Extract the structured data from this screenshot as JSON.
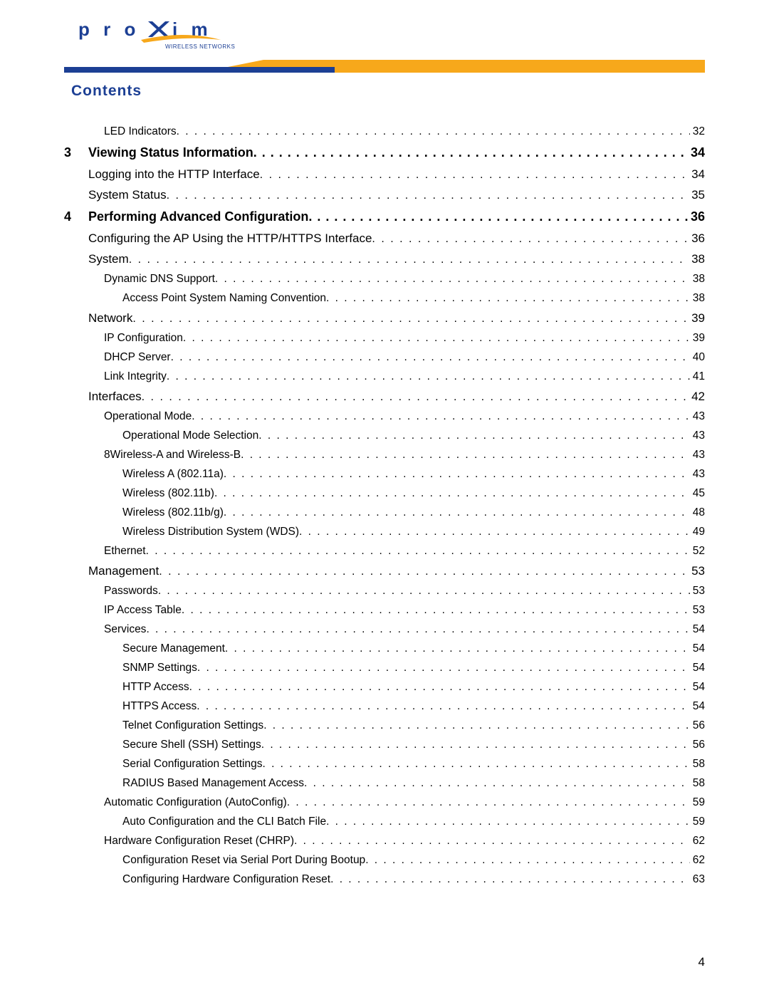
{
  "brand": {
    "name": "proxim",
    "tagline": "WIRELESS NETWORKS",
    "text_color": "#1c3f94",
    "accent_color": "#f7a81b"
  },
  "heading": "Contents",
  "page_number": "4",
  "toc": [
    {
      "level": "2",
      "label": "LED Indicators",
      "page": "32"
    },
    {
      "level": "chapter",
      "number": "3",
      "label": "Viewing Status Information",
      "page": "34"
    },
    {
      "level": "1",
      "label": "Logging into the HTTP Interface",
      "page": "34"
    },
    {
      "level": "1",
      "label": "System Status",
      "page": "35"
    },
    {
      "level": "chapter",
      "number": "4",
      "label": "Performing Advanced Configuration",
      "page": "36"
    },
    {
      "level": "1",
      "label": "Configuring the AP Using the HTTP/HTTPS Interface",
      "page": "36"
    },
    {
      "level": "1",
      "label": "System",
      "page": "38"
    },
    {
      "level": "2",
      "label": "Dynamic DNS Support",
      "page": "38"
    },
    {
      "level": "3",
      "label": "Access Point System Naming Convention",
      "page": "38"
    },
    {
      "level": "1",
      "label": "Network",
      "page": "39"
    },
    {
      "level": "2",
      "label": "IP Configuration",
      "page": "39"
    },
    {
      "level": "2",
      "label": "DHCP Server",
      "page": "40"
    },
    {
      "level": "2",
      "label": "Link Integrity",
      "page": "41"
    },
    {
      "level": "1",
      "label": "Interfaces",
      "page": "42"
    },
    {
      "level": "2",
      "label": "Operational Mode",
      "page": "43"
    },
    {
      "level": "3",
      "label": "Operational Mode Selection",
      "page": "43"
    },
    {
      "level": "2",
      "label": "8Wireless-A and Wireless-B",
      "page": "43"
    },
    {
      "level": "3",
      "label": "Wireless A (802.11a)",
      "page": "43"
    },
    {
      "level": "3",
      "label": "Wireless (802.11b)",
      "page": "45"
    },
    {
      "level": "3",
      "label": "Wireless (802.11b/g)",
      "page": "48"
    },
    {
      "level": "3",
      "label": "Wireless Distribution System (WDS)",
      "page": "49"
    },
    {
      "level": "2",
      "label": "Ethernet",
      "page": "52"
    },
    {
      "level": "1",
      "label": "Management",
      "page": "53"
    },
    {
      "level": "2",
      "label": "Passwords",
      "page": "53"
    },
    {
      "level": "2",
      "label": "IP Access Table",
      "page": "53"
    },
    {
      "level": "2",
      "label": "Services",
      "page": "54"
    },
    {
      "level": "3",
      "label": "Secure Management",
      "page": "54"
    },
    {
      "level": "3",
      "label": "SNMP Settings",
      "page": "54"
    },
    {
      "level": "3",
      "label": "HTTP Access",
      "page": "54"
    },
    {
      "level": "3",
      "label": "HTTPS Access",
      "page": "54"
    },
    {
      "level": "3",
      "label": "Telnet Configuration Settings",
      "page": "56"
    },
    {
      "level": "3",
      "label": "Secure Shell (SSH) Settings",
      "page": "56"
    },
    {
      "level": "3",
      "label": "Serial Configuration Settings",
      "page": "58"
    },
    {
      "level": "3",
      "label": "RADIUS Based Management Access",
      "page": "58"
    },
    {
      "level": "2",
      "label": "Automatic Configuration (AutoConfig)",
      "page": "59"
    },
    {
      "level": "3",
      "label": "Auto Configuration and the CLI Batch File",
      "page": "59"
    },
    {
      "level": "2",
      "label": "Hardware Configuration Reset (CHRP)",
      "page": "62"
    },
    {
      "level": "3",
      "label": "Configuration Reset via Serial Port During Bootup",
      "page": "62"
    },
    {
      "level": "3",
      "label": "Configuring Hardware Configuration Reset",
      "page": "63"
    }
  ]
}
